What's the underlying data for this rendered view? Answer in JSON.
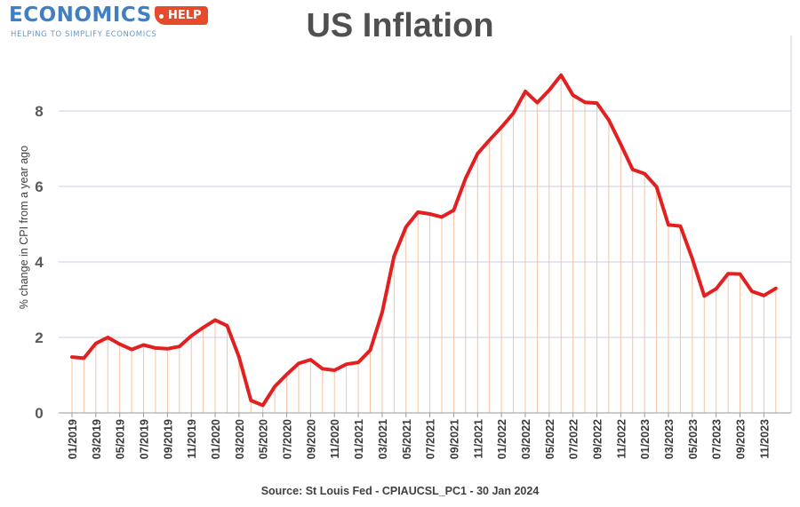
{
  "logo": {
    "brand": "ECONOMICS",
    "tag": "HELP",
    "tagline": "HELPING TO SIMPLIFY ECONOMICS"
  },
  "chart_data": {
    "type": "line",
    "title": "US Inflation",
    "ylabel": "% change in CPI from a year ago",
    "xlabel": "",
    "source": "Source: St Louis Fed - CPIAUCSL_PC1 - 30 Jan 2024",
    "ylim": [
      0,
      10
    ],
    "yticks": [
      0,
      2,
      4,
      6,
      8
    ],
    "grid": true,
    "tick_labels": [
      "01/2019",
      "03/2019",
      "05/2019",
      "07/2019",
      "09/2019",
      "11/2019",
      "01/2020",
      "03/2020",
      "05/2020",
      "07/2020",
      "09/2020",
      "11/2020",
      "01/2021",
      "03/2021",
      "05/2021",
      "07/2021",
      "09/2021",
      "11/2021",
      "01/2022",
      "03/2022",
      "05/2022",
      "07/2022",
      "09/2022",
      "11/2022",
      "01/2023",
      "03/2023",
      "05/2023",
      "07/2023",
      "09/2023",
      "11/2023"
    ],
    "x": [
      "01/2019",
      "02/2019",
      "03/2019",
      "04/2019",
      "05/2019",
      "06/2019",
      "07/2019",
      "08/2019",
      "09/2019",
      "10/2019",
      "11/2019",
      "12/2019",
      "01/2020",
      "02/2020",
      "03/2020",
      "04/2020",
      "05/2020",
      "06/2020",
      "07/2020",
      "08/2020",
      "09/2020",
      "10/2020",
      "11/2020",
      "12/2020",
      "01/2021",
      "02/2021",
      "03/2021",
      "04/2021",
      "05/2021",
      "06/2021",
      "07/2021",
      "08/2021",
      "09/2021",
      "10/2021",
      "11/2021",
      "12/2021",
      "01/2022",
      "02/2022",
      "03/2022",
      "04/2022",
      "05/2022",
      "06/2022",
      "07/2022",
      "08/2022",
      "09/2022",
      "10/2022",
      "11/2022",
      "12/2022",
      "01/2023",
      "02/2023",
      "03/2023",
      "04/2023",
      "05/2023",
      "06/2023",
      "07/2023",
      "08/2023",
      "09/2023",
      "10/2023",
      "11/2023",
      "12/2023"
    ],
    "series": [
      {
        "values": [
          1.48,
          1.45,
          1.84,
          2.0,
          1.82,
          1.68,
          1.8,
          1.72,
          1.7,
          1.76,
          2.04,
          2.26,
          2.46,
          2.31,
          1.48,
          0.33,
          0.2,
          0.7,
          1.02,
          1.31,
          1.41,
          1.17,
          1.13,
          1.29,
          1.34,
          1.66,
          2.66,
          4.15,
          4.93,
          5.32,
          5.27,
          5.19,
          5.37,
          6.22,
          6.87,
          7.23,
          7.57,
          7.94,
          8.52,
          8.22,
          8.55,
          8.95,
          8.42,
          8.23,
          8.21,
          7.76,
          7.12,
          6.45,
          6.34,
          5.99,
          4.98,
          4.95,
          4.09,
          3.1,
          3.29,
          3.69,
          3.68,
          3.22,
          3.11,
          3.3
        ],
        "color": "#e32020"
      }
    ],
    "colors": {
      "line": "#e32020",
      "drop_lines": "#f4c3a4",
      "grid": "#c9cde8",
      "tick_text": "#3a3a3a"
    }
  }
}
